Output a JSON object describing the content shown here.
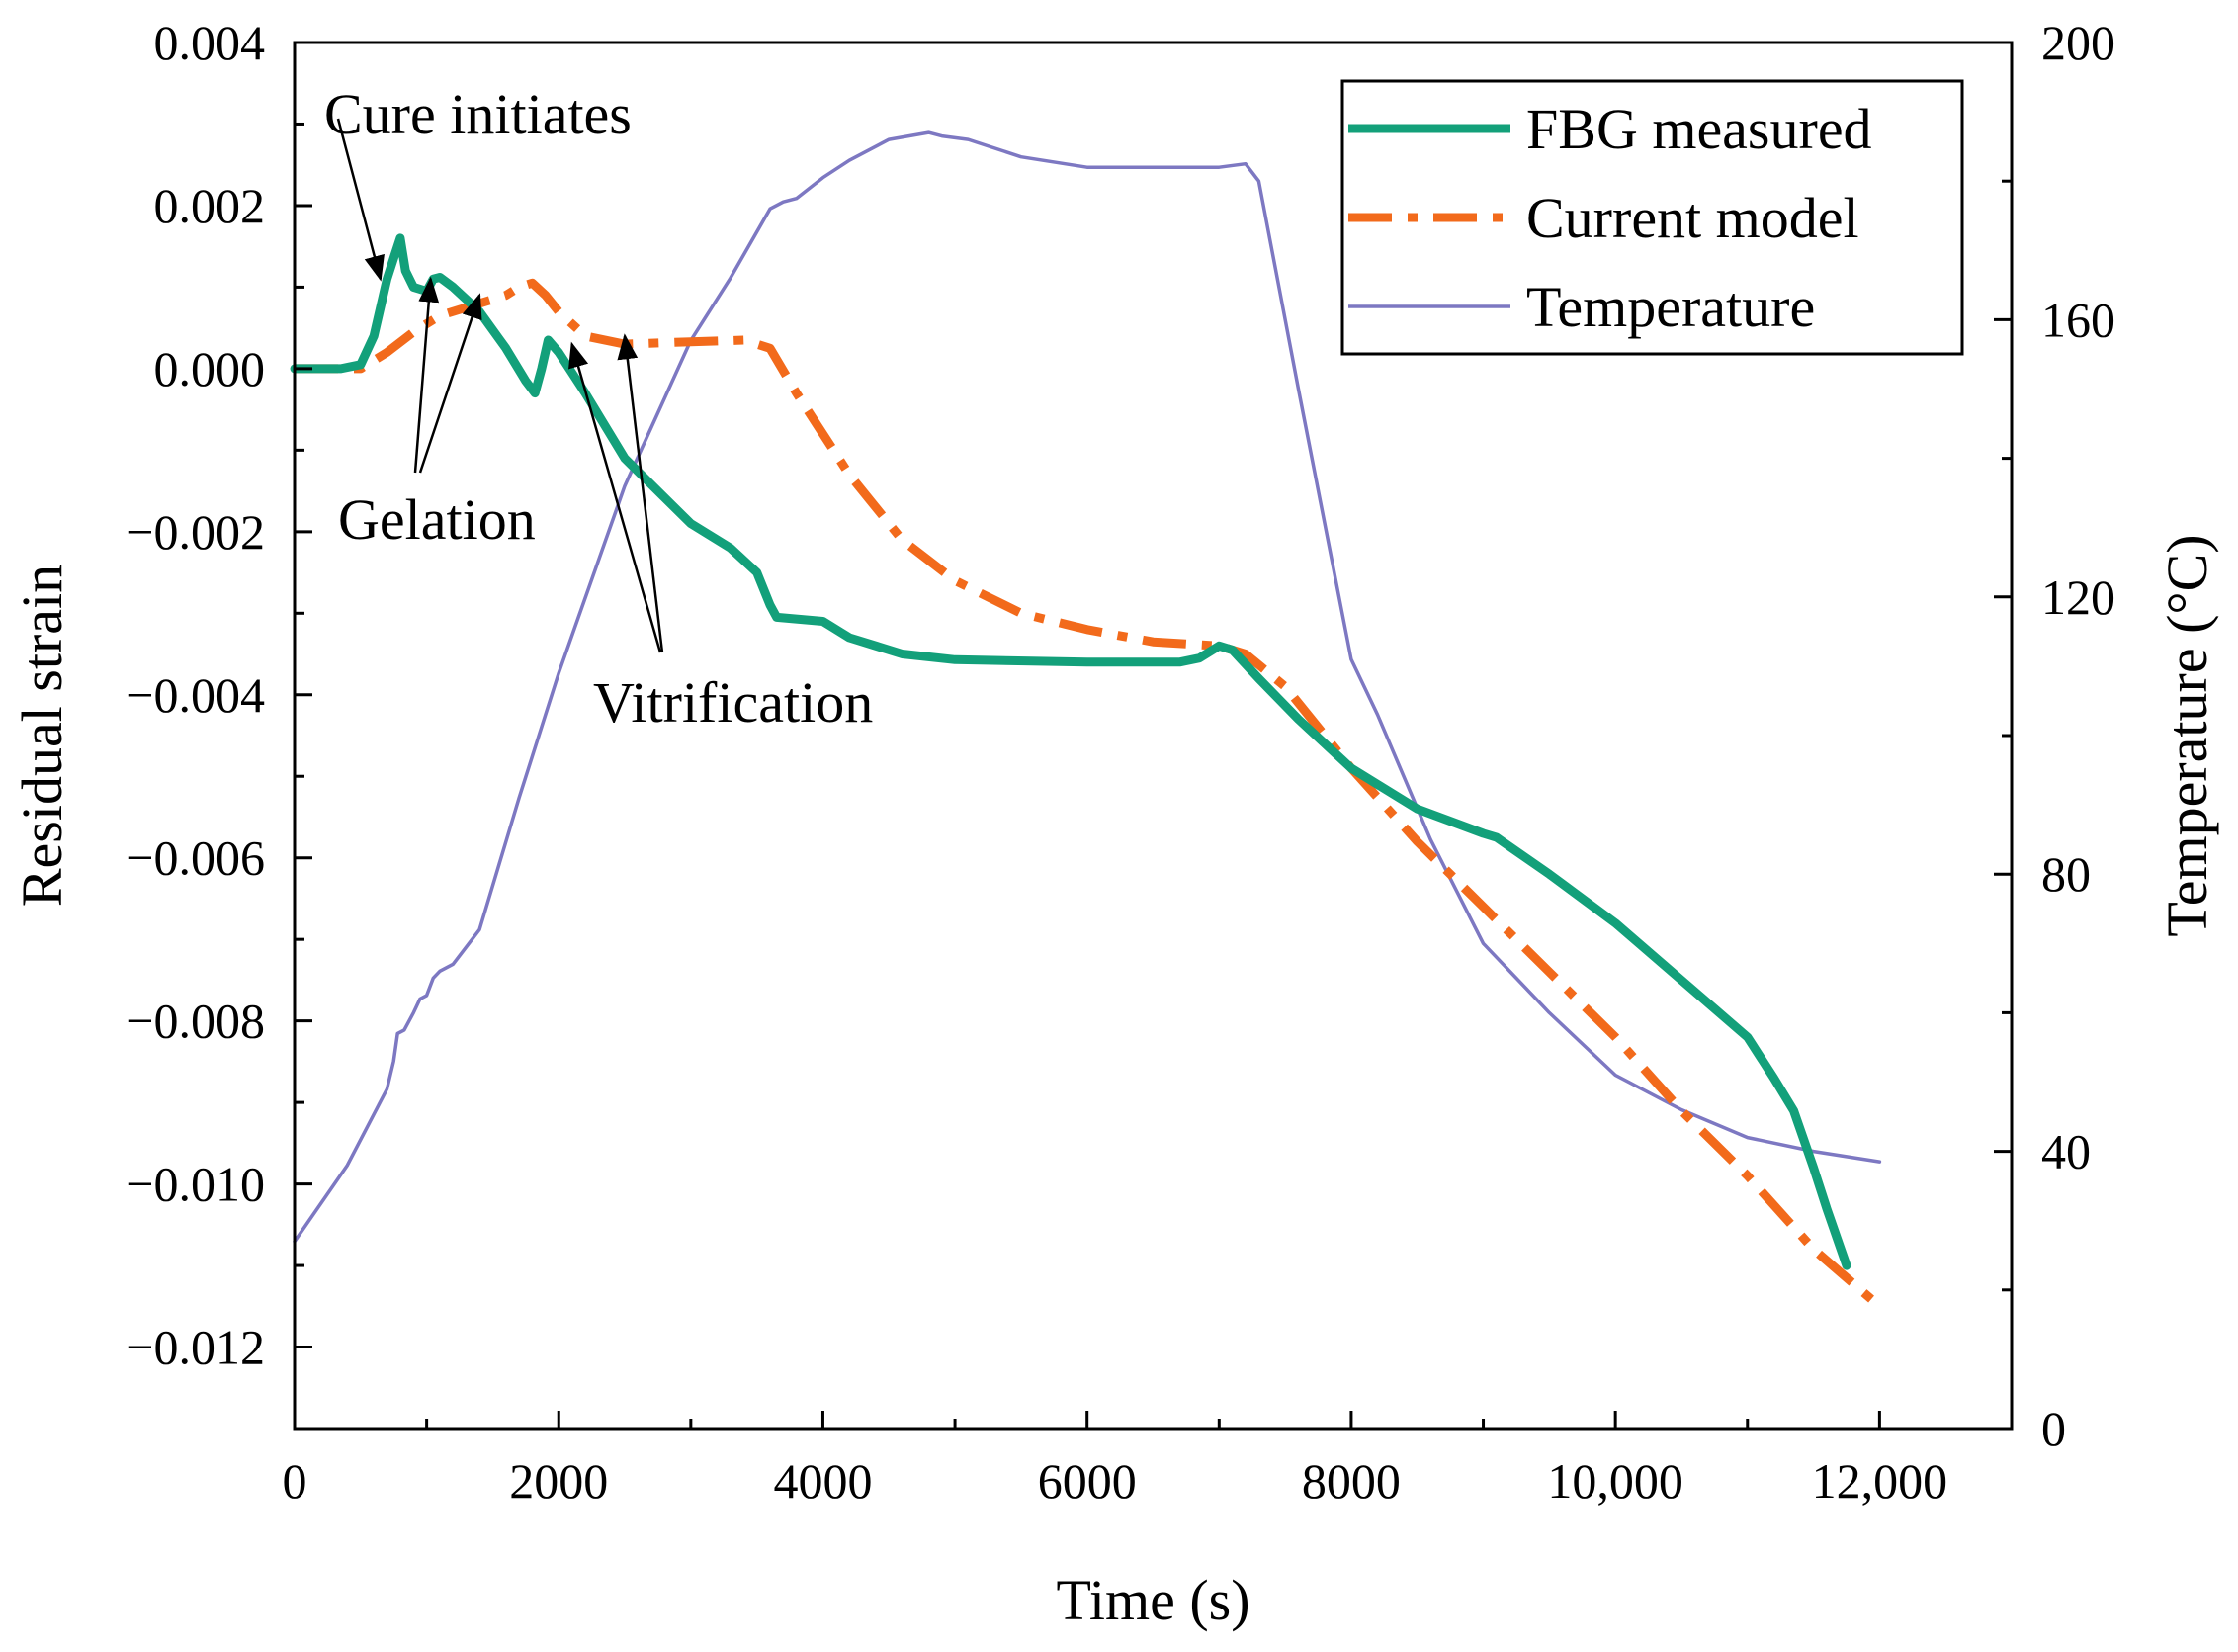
{
  "chart_data": {
    "type": "line",
    "xlabel": "Time (s)",
    "ylabel": "Residual strain",
    "y2label": "Temperature (°C)",
    "xlim": [
      0,
      13000
    ],
    "ylim": [
      -0.013,
      0.004
    ],
    "y2lim": [
      0,
      200
    ],
    "x_ticks": [
      0,
      2000,
      4000,
      6000,
      8000,
      10000,
      12000
    ],
    "x_tick_labels": [
      "0",
      "2000",
      "4000",
      "6000",
      "8000",
      "10,000",
      "12,000"
    ],
    "y_ticks": [
      0.004,
      0.002,
      0.0,
      -0.002,
      -0.004,
      -0.006,
      -0.008,
      -0.01,
      -0.012
    ],
    "y_tick_labels": [
      "0.004",
      "0.002",
      "0.000",
      "−0.002",
      "−0.004",
      "−0.006",
      "−0.008",
      "−0.010",
      "−0.012"
    ],
    "y2_ticks": [
      200,
      160,
      120,
      80,
      40,
      0
    ],
    "y2_tick_labels": [
      "200",
      "160",
      "120",
      "80",
      "40",
      "0"
    ],
    "grid": false,
    "legend_position": "top-right",
    "series": [
      {
        "name": "FBG measured",
        "axis": "left",
        "color": "#13a07a",
        "style": "solid",
        "x": [
          0,
          350,
          500,
          600,
          700,
          760,
          800,
          840,
          900,
          1000,
          1050,
          1100,
          1200,
          1400,
          1600,
          1750,
          1820,
          1870,
          1920,
          2000,
          2200,
          2500,
          3000,
          3300,
          3500,
          3600,
          3650,
          4000,
          4200,
          4600,
          5000,
          6000,
          6700,
          6850,
          7000,
          7100,
          7300,
          7600,
          8000,
          8200,
          8500,
          9000,
          9100,
          9500,
          10000,
          10500,
          11000,
          11200,
          11350,
          11500,
          11600,
          11750
        ],
        "y": [
          0.0,
          0.0,
          5e-05,
          0.0004,
          0.0011,
          0.0014,
          0.0016,
          0.0012,
          0.001,
          0.00095,
          0.0011,
          0.00112,
          0.001,
          0.0007,
          0.00025,
          -0.00015,
          -0.0003,
          0.0,
          0.00035,
          0.0002,
          -0.0003,
          -0.0011,
          -0.0019,
          -0.0022,
          -0.0025,
          -0.0029,
          -0.00305,
          -0.0031,
          -0.0033,
          -0.0035,
          -0.00357,
          -0.0036,
          -0.0036,
          -0.00355,
          -0.0034,
          -0.00345,
          -0.0038,
          -0.0043,
          -0.0049,
          -0.0051,
          -0.0054,
          -0.0057,
          -0.00575,
          -0.0062,
          -0.0068,
          -0.0075,
          -0.0082,
          -0.0087,
          -0.0091,
          -0.0098,
          -0.0103,
          -0.011
        ]
      },
      {
        "name": "Current model",
        "axis": "left",
        "color": "#f26a1b",
        "style": "dashdot",
        "x": [
          0,
          500,
          700,
          900,
          1100,
          1400,
          1600,
          1700,
          1800,
          1900,
          2000,
          2200,
          2500,
          3000,
          3400,
          3600,
          3800,
          4000,
          4200,
          4600,
          5000,
          5500,
          6000,
          6500,
          7000,
          7200,
          7500,
          8000,
          8500,
          9000,
          9500,
          10000,
          10500,
          11000,
          11500,
          12000
        ],
        "y": [
          0.0,
          0.0,
          0.0002,
          0.00045,
          0.00065,
          0.0008,
          0.0009,
          0.001,
          0.00105,
          0.0009,
          0.0007,
          0.0004,
          0.0003,
          0.00033,
          0.00035,
          0.00025,
          -0.0003,
          -0.0008,
          -0.0013,
          -0.0021,
          -0.0026,
          -0.003,
          -0.0032,
          -0.00335,
          -0.0034,
          -0.0035,
          -0.0039,
          -0.0049,
          -0.0058,
          -0.0066,
          -0.0074,
          -0.0082,
          -0.0091,
          -0.0099,
          -0.0108,
          -0.0115
        ]
      },
      {
        "name": "Temperature",
        "axis": "right",
        "color": "#7d78c2",
        "style": "solid",
        "x": [
          0,
          400,
          700,
          750,
          780,
          830,
          900,
          950,
          1000,
          1050,
          1100,
          1200,
          1400,
          1700,
          2000,
          2500,
          3000,
          3300,
          3600,
          3700,
          3800,
          4000,
          4200,
          4500,
          4800,
          4900,
          5100,
          5500,
          6000,
          6500,
          7000,
          7200,
          7300,
          7600,
          8000,
          8200,
          8600,
          9000,
          9500,
          10000,
          10500,
          11000,
          11500,
          12000
        ],
        "y": [
          27,
          38,
          49,
          53,
          57,
          57.5,
          60,
          62,
          62.5,
          65,
          66,
          67,
          72,
          91,
          109,
          136,
          157,
          166,
          176,
          177,
          177.5,
          180.5,
          183,
          186,
          187,
          186.5,
          186,
          183.5,
          182,
          182,
          182,
          182.5,
          180,
          150,
          111,
          103,
          85,
          70,
          60,
          51,
          46,
          42,
          40,
          38.5
        ]
      }
    ],
    "annotations": [
      {
        "text": "Cure initiates",
        "arrows_to": [
          [
            650,
            0.0011
          ]
        ]
      },
      {
        "text": "Gelation",
        "arrows_to": [
          [
            1030,
            0.0011
          ],
          [
            1400,
            0.0009
          ]
        ]
      },
      {
        "text": "Vitrification",
        "arrows_to": [
          [
            2100,
            0.0003
          ],
          [
            2500,
            0.0004
          ]
        ]
      }
    ]
  }
}
